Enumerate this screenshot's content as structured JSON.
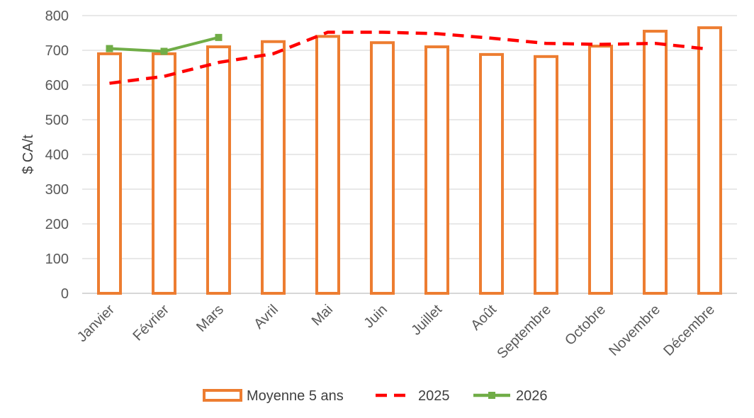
{
  "chart_data": {
    "type": "bar",
    "categories": [
      "Janvier",
      "Février",
      "Mars",
      "Avril",
      "Mai",
      "Juin",
      "Juillet",
      "Août",
      "Septembre",
      "Octobre",
      "Novembre",
      "Décembre"
    ],
    "series": [
      {
        "name": "Moyenne 5 ans",
        "type": "bar",
        "color": "#ED7D31",
        "values": [
          690,
          690,
          710,
          725,
          740,
          722,
          710,
          688,
          682,
          712,
          755,
          765
        ]
      },
      {
        "name": "2025",
        "type": "line",
        "style": "dashed",
        "color": "#FF0000",
        "values": [
          605,
          625,
          665,
          690,
          752,
          752,
          748,
          735,
          720,
          717,
          720,
          703
        ]
      },
      {
        "name": "2026",
        "type": "line",
        "marker": "square",
        "color": "#70AD47",
        "values": [
          705,
          697,
          737,
          null,
          null,
          null,
          null,
          null,
          null,
          null,
          null,
          null
        ]
      }
    ],
    "ylabel": "$ CA/t",
    "ylim": [
      0,
      800
    ],
    "yticks": [
      0,
      100,
      200,
      300,
      400,
      500,
      600,
      700,
      800
    ],
    "grid": true,
    "legend": "bottom"
  }
}
